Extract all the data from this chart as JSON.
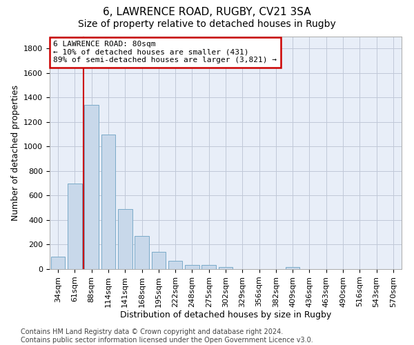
{
  "title": "6, LAWRENCE ROAD, RUGBY, CV21 3SA",
  "subtitle": "Size of property relative to detached houses in Rugby",
  "xlabel": "Distribution of detached houses by size in Rugby",
  "ylabel": "Number of detached properties",
  "bar_color": "#c8d8ea",
  "bar_edgecolor": "#7aaac8",
  "annotation_box_color": "#cc0000",
  "vline_color": "#cc0000",
  "categories": [
    "34sqm",
    "61sqm",
    "88sqm",
    "114sqm",
    "141sqm",
    "168sqm",
    "195sqm",
    "222sqm",
    "248sqm",
    "275sqm",
    "302sqm",
    "329sqm",
    "356sqm",
    "382sqm",
    "409sqm",
    "436sqm",
    "463sqm",
    "490sqm",
    "516sqm",
    "543sqm",
    "570sqm"
  ],
  "values": [
    100,
    700,
    1340,
    1100,
    490,
    270,
    140,
    70,
    33,
    33,
    18,
    0,
    0,
    0,
    18,
    0,
    0,
    0,
    0,
    0,
    0
  ],
  "ylim": [
    0,
    1900
  ],
  "yticks": [
    0,
    200,
    400,
    600,
    800,
    1000,
    1200,
    1400,
    1600,
    1800
  ],
  "annotation_text": "6 LAWRENCE ROAD: 80sqm\n← 10% of detached houses are smaller (431)\n89% of semi-detached houses are larger (3,821) →",
  "footer_text": "Contains HM Land Registry data © Crown copyright and database right 2024.\nContains public sector information licensed under the Open Government Licence v3.0.",
  "background_color": "#ffffff",
  "plot_bg_color": "#e8eef8",
  "grid_color": "#c0c8d8",
  "title_fontsize": 11,
  "subtitle_fontsize": 10,
  "xlabel_fontsize": 9,
  "ylabel_fontsize": 9,
  "tick_fontsize": 8,
  "annotation_fontsize": 8,
  "footer_fontsize": 7
}
